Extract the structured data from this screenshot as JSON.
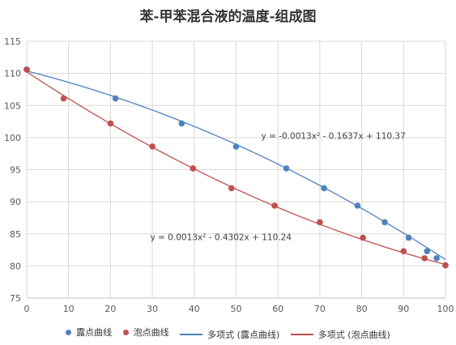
{
  "chart_data": {
    "type": "scatter",
    "title": "苯-甲苯混合液的温度-组成图",
    "xlabel": "",
    "ylabel": "",
    "xlim": [
      0,
      100
    ],
    "ylim": [
      75,
      115
    ],
    "xticks": [
      "0",
      "10",
      "20",
      "30",
      "40",
      "50",
      "60",
      "70",
      "80",
      "90",
      "100"
    ],
    "yticks": [
      "75",
      "80",
      "85",
      "90",
      "95",
      "100",
      "105",
      "110",
      "115"
    ],
    "grid": true,
    "legend_position": "bottom",
    "series": [
      {
        "name": "露点曲线",
        "kind": "scatter",
        "color": "#4f81bd",
        "points": [
          [
            0,
            110.6
          ],
          [
            21.2,
            106.1
          ],
          [
            37,
            102.2
          ],
          [
            50,
            98.6
          ],
          [
            62,
            95.2
          ],
          [
            71,
            92.1
          ],
          [
            79,
            89.4
          ],
          [
            85.5,
            86.8
          ],
          [
            91.2,
            84.4
          ],
          [
            95.6,
            82.3
          ],
          [
            97.9,
            81.2
          ],
          [
            100,
            80.1
          ]
        ]
      },
      {
        "name": "泡点曲线",
        "kind": "scatter",
        "color": "#c0504d",
        "points": [
          [
            0,
            110.6
          ],
          [
            8.8,
            106.1
          ],
          [
            20,
            102.2
          ],
          [
            30,
            98.6
          ],
          [
            39.7,
            95.2
          ],
          [
            48.9,
            92.1
          ],
          [
            59.2,
            89.4
          ],
          [
            70,
            86.8
          ],
          [
            80.3,
            84.4
          ],
          [
            90,
            82.3
          ],
          [
            95,
            81.2
          ],
          [
            100,
            80.1
          ]
        ]
      },
      {
        "name": "多项式 (露点曲线)",
        "kind": "trendline",
        "color": "#4f81bd",
        "coefficients": [
          -0.0013,
          -0.1637,
          110.37
        ]
      },
      {
        "name": "多项式 (泡点曲线)",
        "kind": "trendline",
        "color": "#c0504d",
        "coefficients": [
          0.0013,
          -0.4302,
          110.24
        ]
      }
    ],
    "annotations": [
      {
        "text": "y = -0.0013x² - 0.1637x + 110.37",
        "at": [
          56,
          99.8
        ]
      },
      {
        "text": "y = 0.0013x² - 0.4302x + 110.24",
        "at": [
          29.5,
          84.0
        ]
      }
    ],
    "colors": {
      "grid": "#d9d9d9",
      "axis": "#bfbfbf",
      "tick_text": "#595959"
    }
  }
}
